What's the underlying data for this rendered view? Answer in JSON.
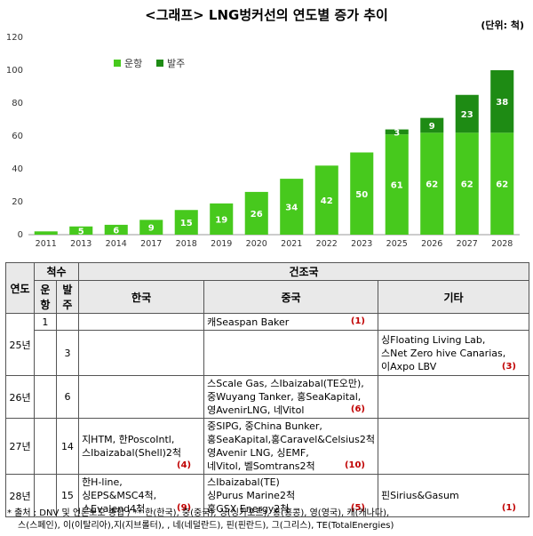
{
  "title": "<그래프> LNG벙커선의 연도별 증가 추이",
  "unit": "(단위: 척)",
  "chart_data": {
    "type": "bar",
    "stacked": true,
    "categories": [
      "2011",
      "2013",
      "2014",
      "2017",
      "2018",
      "2019",
      "2020",
      "2021",
      "2022",
      "2023",
      "2025",
      "2026",
      "2027",
      "2028"
    ],
    "series": [
      {
        "name": "운항",
        "color": "#47c91d",
        "values": [
          2,
          5,
          6,
          9,
          15,
          19,
          26,
          34,
          42,
          50,
          61,
          62,
          62,
          62
        ],
        "labels": [
          "",
          "5",
          "6",
          "9",
          "15",
          "19",
          "26",
          "34",
          "42",
          "50",
          "61",
          "62",
          "62",
          "62"
        ]
      },
      {
        "name": "발주",
        "color": "#1e8b14",
        "values": [
          0,
          0,
          0,
          0,
          0,
          0,
          0,
          0,
          0,
          0,
          3,
          9,
          23,
          38
        ],
        "labels": [
          "",
          "",
          "",
          "",
          "",
          "",
          "",
          "",
          "",
          "",
          "3",
          "9",
          "23",
          "38"
        ]
      }
    ],
    "ylim": [
      0,
      120
    ],
    "yticks": [
      0,
      20,
      40,
      60,
      80,
      100,
      120
    ],
    "grid": false,
    "legend": "top-left"
  },
  "table": {
    "h_year": "연도",
    "h_count": "척수",
    "h_build": "건조국",
    "h_op": "운항",
    "h_order": "발주",
    "h_korea": "한국",
    "h_china": "중국",
    "h_other": "기타",
    "y25": "25년",
    "y26": "26년",
    "y27": "27년",
    "y28": "28년",
    "r25a_op": "1",
    "r25a_china": "캐Seaspan Baker",
    "r25a_china_cnt": "(1)",
    "r25b_order": "3",
    "r25b_other": [
      "싱Floating Living Lab,",
      "스Net Zero hive Canarias,",
      "이Axpo LBV"
    ],
    "r25b_other_cnt": "(3)",
    "r26_order": "6",
    "r26_china": [
      "스Scale Gas, 스Ibaizabal(TE오만),",
      "중Wuyang Tanker, 홍SeaKapital,",
      "영AvenirLNG, 네Vitol"
    ],
    "r26_china_cnt": "(6)",
    "r27_order": "14",
    "r27_korea": [
      "지HTM, 한PoscoIntl,",
      "스Ibaizabal(Shell)2척"
    ],
    "r27_korea_cnt": "(4)",
    "r27_china": [
      "중SIPG, 중China Bunker,",
      "홍SeaKapital,홍Caravel&Celsius2척",
      "영Avenir LNG, 싱EMF,",
      "네Vitol, 벨Somtrans2척"
    ],
    "r27_china_cnt": "(10)",
    "r28_order": "15",
    "r28_korea": [
      "한H-line,",
      "싱EPS&MSC4척,",
      "스Evalend4척"
    ],
    "r28_korea_cnt": "(9)",
    "r28_china": [
      "스Ibaizabal(TE)",
      "싱Purus Marine2척",
      "홍GSX Energy2척"
    ],
    "r28_china_cnt": "(5)",
    "r28_other": "핀Sirius&Gasum",
    "r28_other_cnt": "(1)"
  },
  "footnote": [
    "*  출처 : DNV 및 언론보도 종합 /  ** 한(한국), 중(중국), 싱(싱가포르), 홍(홍콩), 영(영국), 캐(캐나다),",
    "스(스페인), 이(이탈리아),지(지브롤터), , 네(네덜란드), 핀(핀란드), 그(그리스), TE(TotalEnergies)"
  ]
}
